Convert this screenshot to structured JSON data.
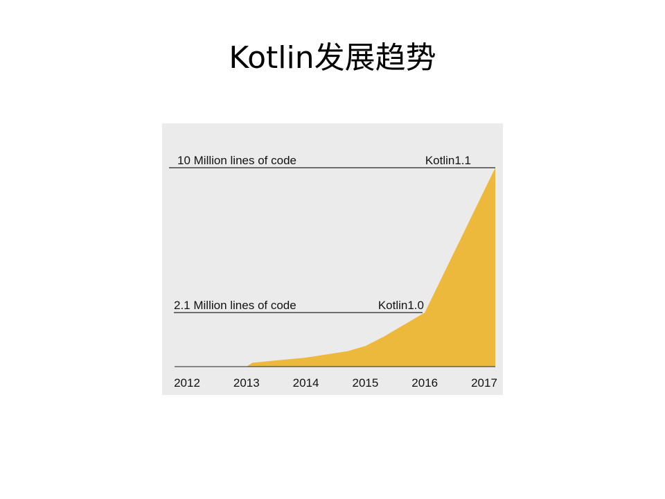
{
  "slide": {
    "title": "Kotlin发展趋势"
  },
  "chart_data": {
    "type": "area",
    "categories": [
      "2012",
      "2013",
      "2014",
      "2015",
      "2016",
      "2017"
    ],
    "series": [
      {
        "values_millions_loc": [
          {
            "x": 2012,
            "y": 0
          },
          {
            "x": 2013,
            "y": 0
          },
          {
            "x": 2013.1,
            "y": 0.15
          },
          {
            "x": 2014,
            "y": 0.35
          },
          {
            "x": 2014.7,
            "y": 0.6
          },
          {
            "x": 2015,
            "y": 0.8
          },
          {
            "x": 2015.3,
            "y": 1.15
          },
          {
            "x": 2016,
            "y": 2.1
          },
          {
            "x": 2017,
            "y": 10
          }
        ]
      }
    ],
    "reference_lines": [
      {
        "label": "10 Million lines of code",
        "value": 10,
        "annotation": "Kotlin1.1",
        "annotation_year": 2017
      },
      {
        "label": "2.1 Million lines of code",
        "value": 2.1,
        "annotation": "Kotlin1.0",
        "annotation_year": 2016
      }
    ],
    "xlim": [
      2012,
      2017
    ],
    "ylim": [
      0,
      10
    ],
    "grid": false,
    "colors": {
      "background": "#ebebeb",
      "area": "#ecb93c",
      "lines": "#222222"
    }
  }
}
